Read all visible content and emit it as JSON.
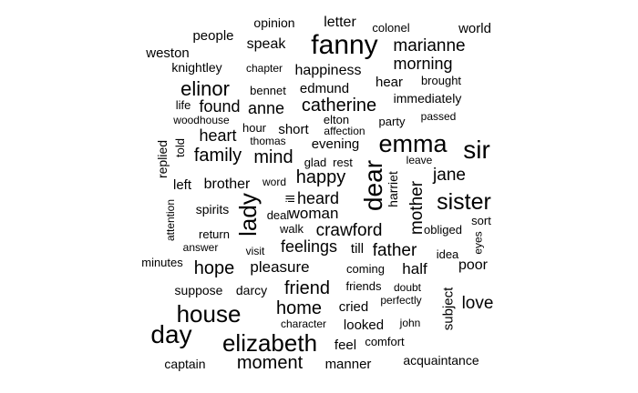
{
  "text_color": "#000000",
  "background_color": "#ffffff",
  "words": [
    {
      "text": "fanny",
      "weight": 30
    },
    {
      "text": "emma",
      "weight": 27
    },
    {
      "text": "sir",
      "weight": 28
    },
    {
      "text": "elizabeth",
      "weight": 26
    },
    {
      "text": "day",
      "weight": 28
    },
    {
      "text": "house",
      "weight": 26
    },
    {
      "text": "sister",
      "weight": 25
    },
    {
      "text": "dear",
      "weight": 28,
      "vertical": true
    },
    {
      "text": "lady",
      "weight": 26,
      "vertical": true
    },
    {
      "text": "elinor",
      "weight": 22
    },
    {
      "text": "catherine",
      "weight": 20
    },
    {
      "text": "marianne",
      "weight": 19
    },
    {
      "text": "morning",
      "weight": 18
    },
    {
      "text": "family",
      "weight": 20
    },
    {
      "text": "mind",
      "weight": 20
    },
    {
      "text": "happy",
      "weight": 20
    },
    {
      "text": "crawford",
      "weight": 19
    },
    {
      "text": "father",
      "weight": 19
    },
    {
      "text": "feelings",
      "weight": 18
    },
    {
      "text": "friend",
      "weight": 20
    },
    {
      "text": "home",
      "weight": 20
    },
    {
      "text": "moment",
      "weight": 20
    },
    {
      "text": "hope",
      "weight": 20
    },
    {
      "text": "mother",
      "weight": 19,
      "vertical": true
    },
    {
      "text": "jane",
      "weight": 19
    },
    {
      "text": "heard",
      "weight": 18
    },
    {
      "text": "woman",
      "weight": 17
    },
    {
      "text": "found",
      "weight": 18
    },
    {
      "text": "anne",
      "weight": 18
    },
    {
      "text": "heart",
      "weight": 18
    },
    {
      "text": "love",
      "weight": 19
    },
    {
      "text": "pleasure",
      "weight": 17
    },
    {
      "text": "half",
      "weight": 17
    },
    {
      "text": "brother",
      "weight": 16
    },
    {
      "text": "happiness",
      "weight": 16
    },
    {
      "text": "edmund",
      "weight": 15
    },
    {
      "text": "hear",
      "weight": 15
    },
    {
      "text": "evening",
      "weight": 15
    },
    {
      "text": "world",
      "weight": 15
    },
    {
      "text": "letter",
      "weight": 16
    },
    {
      "text": "speak",
      "weight": 16
    },
    {
      "text": "people",
      "weight": 15
    },
    {
      "text": "weston",
      "weight": 15
    },
    {
      "text": "knightley",
      "weight": 14
    },
    {
      "text": "opinion",
      "weight": 14
    },
    {
      "text": "colonel",
      "weight": 13
    },
    {
      "text": "chapter",
      "weight": 12
    },
    {
      "text": "brought",
      "weight": 13
    },
    {
      "text": "immediately",
      "weight": 14
    },
    {
      "text": "bennet",
      "weight": 13
    },
    {
      "text": "life",
      "weight": 13
    },
    {
      "text": "elton",
      "weight": 13
    },
    {
      "text": "party",
      "weight": 13
    },
    {
      "text": "passed",
      "weight": 12
    },
    {
      "text": "woodhouse",
      "weight": 12
    },
    {
      "text": "hour",
      "weight": 13
    },
    {
      "text": "short",
      "weight": 15
    },
    {
      "text": "affection",
      "weight": 12
    },
    {
      "text": "thomas",
      "weight": 12
    },
    {
      "text": "replied",
      "weight": 14,
      "vertical": true
    },
    {
      "text": "told",
      "weight": 13,
      "vertical": true
    },
    {
      "text": "glad",
      "weight": 13
    },
    {
      "text": "rest",
      "weight": 13
    },
    {
      "text": "leave",
      "weight": 12
    },
    {
      "text": "harriet",
      "weight": 14,
      "vertical": true
    },
    {
      "text": "left",
      "weight": 15
    },
    {
      "text": "word",
      "weight": 12
    },
    {
      "text": "ill",
      "weight": 13,
      "vertical": true
    },
    {
      "text": "attention",
      "weight": 12,
      "vertical": true
    },
    {
      "text": "spirits",
      "weight": 14
    },
    {
      "text": "deal",
      "weight": 13
    },
    {
      "text": "walk",
      "weight": 13
    },
    {
      "text": "obliged",
      "weight": 13
    },
    {
      "text": "sort",
      "weight": 13
    },
    {
      "text": "return",
      "weight": 13
    },
    {
      "text": "eyes",
      "weight": 12,
      "vertical": true
    },
    {
      "text": "answer",
      "weight": 12
    },
    {
      "text": "visit",
      "weight": 12
    },
    {
      "text": "till",
      "weight": 15
    },
    {
      "text": "idea",
      "weight": 13
    },
    {
      "text": "minutes",
      "weight": 13
    },
    {
      "text": "coming",
      "weight": 13
    },
    {
      "text": "poor",
      "weight": 16
    },
    {
      "text": "suppose",
      "weight": 14
    },
    {
      "text": "darcy",
      "weight": 14
    },
    {
      "text": "friends",
      "weight": 13
    },
    {
      "text": "doubt",
      "weight": 12
    },
    {
      "text": "perfectly",
      "weight": 12
    },
    {
      "text": "cried",
      "weight": 15
    },
    {
      "text": "subject",
      "weight": 15,
      "vertical": true
    },
    {
      "text": "character",
      "weight": 12
    },
    {
      "text": "looked",
      "weight": 15
    },
    {
      "text": "john",
      "weight": 12
    },
    {
      "text": "feel",
      "weight": 15
    },
    {
      "text": "comfort",
      "weight": 13
    },
    {
      "text": "captain",
      "weight": 14
    },
    {
      "text": "manner",
      "weight": 15
    },
    {
      "text": "acquaintance",
      "weight": 14
    }
  ]
}
